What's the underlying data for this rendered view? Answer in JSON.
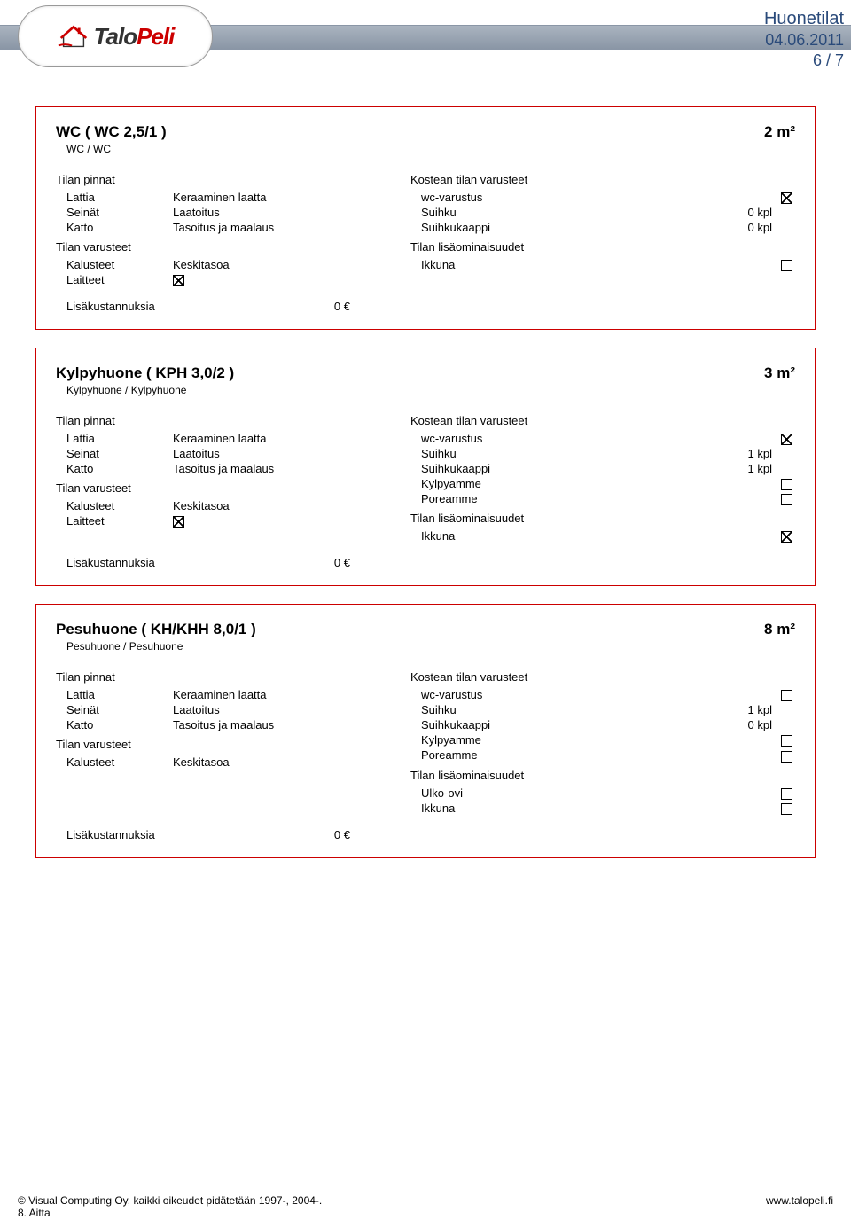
{
  "header": {
    "logo_t1": "Talo",
    "logo_t2": "Peli",
    "title": "Huonetilat",
    "date": "04.06.2011",
    "page": "6 / 7"
  },
  "labels": {
    "pinnat": "Tilan pinnat",
    "varusteet": "Tilan varusteet",
    "kostean": "Kostean tilan varusteet",
    "lisao": "Tilan lisäominaisuudet",
    "lisakust": "Lisäkustannuksia",
    "lattia": "Lattia",
    "seinat": "Seinät",
    "katto": "Katto",
    "kalusteet": "Kalusteet",
    "laitteet": "Laitteet",
    "wc_varustus": "wc-varustus",
    "suihku": "Suihku",
    "suihkukaappi": "Suihkukaappi",
    "kylpyamme": "Kylpyamme",
    "poreamme": "Poreamme",
    "ikkuna": "Ikkuna",
    "ulko_ovi": "Ulko-ovi",
    "ker_laatta": "Keraaminen laatta",
    "laatoitus": "Laatoitus",
    "tasoitus": "Tasoitus ja maalaus",
    "keskitasoa": "Keskitasoa"
  },
  "rooms": [
    {
      "title": "WC ( WC 2,5/1 )",
      "sub": "WC / WC",
      "area": "2  m²",
      "left_surfaces": [
        {
          "k": "lattia",
          "v": "ker_laatta"
        },
        {
          "k": "seinat",
          "v": "laatoitus"
        },
        {
          "k": "katto",
          "v": "tasoitus"
        }
      ],
      "left_equipment": [
        {
          "k": "kalusteet",
          "v": "keskitasoa"
        },
        {
          "k": "laitteet",
          "cb": true
        }
      ],
      "right_wet": [
        {
          "k": "wc_varustus",
          "cb": true
        },
        {
          "k": "suihku",
          "val": "0  kpl"
        },
        {
          "k": "suihkukaappi",
          "val": "0  kpl"
        }
      ],
      "right_extra": [
        {
          "k": "ikkuna",
          "cb": false
        }
      ],
      "cost": "0  €"
    },
    {
      "title": "Kylpyhuone ( KPH 3,0/2 )",
      "sub": "Kylpyhuone / Kylpyhuone",
      "area": "3  m²",
      "left_surfaces": [
        {
          "k": "lattia",
          "v": "ker_laatta"
        },
        {
          "k": "seinat",
          "v": "laatoitus"
        },
        {
          "k": "katto",
          "v": "tasoitus"
        }
      ],
      "left_equipment": [
        {
          "k": "kalusteet",
          "v": "keskitasoa"
        },
        {
          "k": "laitteet",
          "cb": true
        }
      ],
      "right_wet": [
        {
          "k": "wc_varustus",
          "cb": true
        },
        {
          "k": "suihku",
          "val": "1  kpl"
        },
        {
          "k": "suihkukaappi",
          "val": "1  kpl"
        },
        {
          "k": "kylpyamme",
          "cb": false
        },
        {
          "k": "poreamme",
          "cb": false
        }
      ],
      "right_extra": [
        {
          "k": "ikkuna",
          "cb": true
        }
      ],
      "cost": "0  €"
    },
    {
      "title": "Pesuhuone ( KH/KHH 8,0/1 )",
      "sub": "Pesuhuone / Pesuhuone",
      "area": "8  m²",
      "left_surfaces": [
        {
          "k": "lattia",
          "v": "ker_laatta"
        },
        {
          "k": "seinat",
          "v": "laatoitus"
        },
        {
          "k": "katto",
          "v": "tasoitus"
        }
      ],
      "left_equipment": [
        {
          "k": "kalusteet",
          "v": "keskitasoa"
        }
      ],
      "right_wet": [
        {
          "k": "wc_varustus",
          "cb": false
        },
        {
          "k": "suihku",
          "val": "1  kpl"
        },
        {
          "k": "suihkukaappi",
          "val": "0  kpl"
        },
        {
          "k": "kylpyamme",
          "cb": false
        },
        {
          "k": "poreamme",
          "cb": false
        }
      ],
      "right_extra": [
        {
          "k": "ulko_ovi",
          "cb": false
        },
        {
          "k": "ikkuna",
          "cb": false
        }
      ],
      "cost": "0  €"
    }
  ],
  "footer": {
    "copyright": "© Visual Computing Oy, kaikki oikeudet pidätetään 1997-, 2004-.",
    "note": "8. Aitta",
    "url": "www.talopeli.fi"
  }
}
